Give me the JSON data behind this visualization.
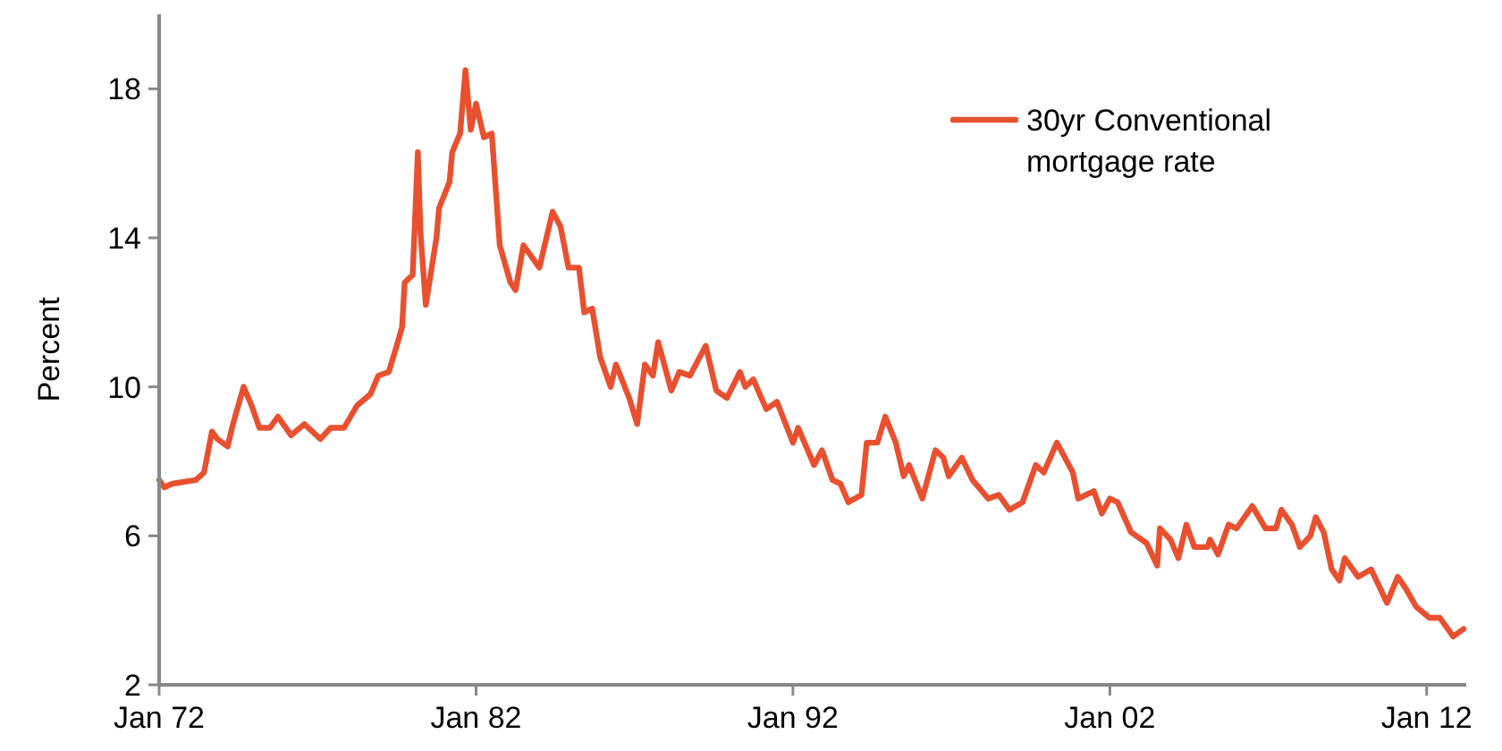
{
  "chart_data": {
    "type": "line",
    "ylabel": "Percent",
    "xlim": [
      "1972-01",
      "2013-04"
    ],
    "ylim": [
      2,
      20
    ],
    "yticks": [
      2,
      6,
      10,
      14,
      18
    ],
    "xticks": [
      {
        "value": "1972-01",
        "label": "Jan 72"
      },
      {
        "value": "1982-01",
        "label": "Jan 82"
      },
      {
        "value": "1992-01",
        "label": "Jan 92"
      },
      {
        "value": "2002-01",
        "label": "Jan 02"
      },
      {
        "value": "2012-01",
        "label": "Jan 12"
      }
    ],
    "x": [
      "1972-01",
      "1972-03",
      "1972-06",
      "1973-03",
      "1973-06",
      "1973-09",
      "1973-11",
      "1974-03",
      "1974-05",
      "1974-09",
      "1974-12",
      "1975-03",
      "1975-07",
      "1975-10",
      "1975-12",
      "1976-03",
      "1976-08",
      "1977-02",
      "1977-06",
      "1977-11",
      "1978-04",
      "1978-09",
      "1978-12",
      "1979-04",
      "1979-07",
      "1979-09",
      "1979-10",
      "1980-01",
      "1980-03",
      "1980-04",
      "1980-06",
      "1980-10",
      "1980-11",
      "1981-03",
      "1981-04",
      "1981-07",
      "1981-09",
      "1981-11",
      "1982-01",
      "1982-04",
      "1982-07",
      "1982-10",
      "1983-02",
      "1983-04",
      "1983-07",
      "1984-01",
      "1984-06",
      "1984-09",
      "1984-12",
      "1985-04",
      "1985-06",
      "1985-09",
      "1985-12",
      "1986-04",
      "1986-06",
      "1986-11",
      "1987-02",
      "1987-05",
      "1987-08",
      "1987-10",
      "1988-03",
      "1988-06",
      "1988-10",
      "1989-04",
      "1989-08",
      "1989-12",
      "1990-05",
      "1990-07",
      "1990-10",
      "1991-03",
      "1991-07",
      "1992-01",
      "1992-03",
      "1992-09",
      "1992-12",
      "1993-04",
      "1993-07",
      "1993-10",
      "1994-03",
      "1994-05",
      "1994-09",
      "1994-12",
      "1995-04",
      "1995-07",
      "1995-09",
      "1996-02",
      "1996-07",
      "1996-10",
      "1996-12",
      "1997-05",
      "1997-09",
      "1998-03",
      "1998-07",
      "1998-11",
      "1999-04",
      "1999-09",
      "1999-12",
      "2000-05",
      "2000-11",
      "2001-01",
      "2001-07",
      "2001-10",
      "2002-01",
      "2002-04",
      "2002-09",
      "2003-03",
      "2003-07",
      "2003-08",
      "2003-12",
      "2004-03",
      "2004-06",
      "2004-09",
      "2005-02",
      "2005-03",
      "2005-06",
      "2005-10",
      "2006-01",
      "2006-07",
      "2006-12",
      "2007-04",
      "2007-06",
      "2007-10",
      "2008-01",
      "2008-05",
      "2008-07",
      "2008-10",
      "2009-01",
      "2009-04",
      "2009-06",
      "2009-11",
      "2010-04",
      "2010-10",
      "2011-02",
      "2011-05",
      "2011-09",
      "2012-02",
      "2012-06",
      "2012-11",
      "2013-03"
    ],
    "series": [
      {
        "name": "30yr Conventional mortgage rate",
        "color": "#e8502f",
        "values": [
          7.5,
          7.3,
          7.4,
          7.5,
          7.7,
          8.8,
          8.6,
          8.4,
          9.0,
          10.0,
          9.5,
          8.9,
          8.9,
          9.2,
          9.0,
          8.7,
          9.0,
          8.6,
          8.9,
          8.9,
          9.5,
          9.8,
          10.3,
          10.4,
          11.1,
          11.6,
          12.8,
          13.0,
          16.3,
          14.1,
          12.2,
          14.0,
          14.8,
          15.5,
          16.3,
          16.8,
          18.5,
          16.9,
          17.6,
          16.7,
          16.8,
          13.8,
          12.8,
          12.6,
          13.8,
          13.2,
          14.7,
          14.3,
          13.2,
          13.2,
          12.0,
          12.1,
          10.8,
          10.0,
          10.6,
          9.7,
          9.0,
          10.6,
          10.3,
          11.2,
          9.9,
          10.4,
          10.3,
          11.1,
          9.9,
          9.7,
          10.4,
          10.0,
          10.2,
          9.4,
          9.6,
          8.5,
          8.9,
          7.9,
          8.3,
          7.5,
          7.4,
          6.9,
          7.1,
          8.5,
          8.5,
          9.2,
          8.5,
          7.6,
          7.9,
          7.0,
          8.3,
          8.1,
          7.6,
          8.1,
          7.5,
          7.0,
          7.1,
          6.7,
          6.9,
          7.9,
          7.7,
          8.5,
          7.7,
          7.0,
          7.2,
          6.6,
          7.0,
          6.9,
          6.1,
          5.8,
          5.2,
          6.2,
          5.9,
          5.4,
          6.3,
          5.7,
          5.7,
          5.9,
          5.5,
          6.3,
          6.2,
          6.8,
          6.2,
          6.2,
          6.7,
          6.3,
          5.7,
          6.0,
          6.5,
          6.1,
          5.1,
          4.8,
          5.4,
          4.9,
          5.1,
          4.2,
          4.9,
          4.6,
          4.1,
          3.8,
          3.8,
          3.3,
          3.5
        ]
      }
    ],
    "legend": "top right",
    "grid": false
  }
}
